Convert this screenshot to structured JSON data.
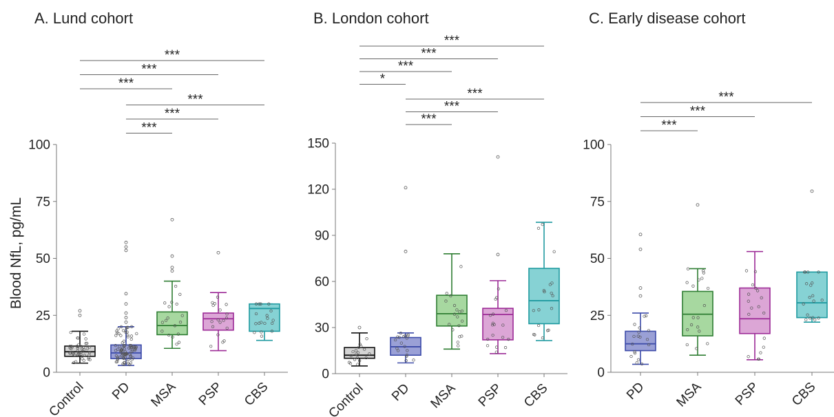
{
  "figure": {
    "ylabel": "Blood NfL, pg/mL",
    "colors": {
      "Control": {
        "fill": "#d4d4d4",
        "stroke": "#111111"
      },
      "PD": {
        "fill": "#9aa0d6",
        "stroke": "#3b4aa8"
      },
      "MSA": {
        "fill": "#a7d8a0",
        "stroke": "#2e7d32"
      },
      "PSP": {
        "fill": "#dca6d6",
        "stroke": "#9c2a96"
      },
      "CBS": {
        "fill": "#86d2d4",
        "stroke": "#1f9aa0"
      }
    }
  },
  "chart_data": [
    {
      "type": "box",
      "title": "A. Lund cohort",
      "ylabel": "Blood NfL, pg/mL",
      "ylim": [
        0,
        100
      ],
      "yticks": [
        0,
        25,
        50,
        75,
        100
      ],
      "categories": [
        "Control",
        "PD",
        "MSA",
        "PSP",
        "CBS"
      ],
      "boxes": [
        {
          "name": "Control",
          "min": 4,
          "q1": 7,
          "median": 9,
          "q3": 11.5,
          "max": 18,
          "outliers": [
            25,
            27
          ]
        },
        {
          "name": "PD",
          "min": 3,
          "q1": 6,
          "median": 8.5,
          "q3": 12,
          "max": 20,
          "outliers": [
            22,
            24,
            26,
            30,
            34.5,
            53.5,
            55,
            57
          ]
        },
        {
          "name": "MSA",
          "min": 10.5,
          "q1": 16.5,
          "median": 20.5,
          "q3": 26.5,
          "max": 40,
          "outliers": [
            44.5,
            46,
            51,
            67
          ]
        },
        {
          "name": "PSP",
          "min": 9.5,
          "q1": 18.5,
          "median": 23.5,
          "q3": 26,
          "max": 35,
          "outliers": [
            52.5
          ]
        },
        {
          "name": "CBS",
          "min": 14,
          "q1": 18,
          "median": 28,
          "q3": 30,
          "max": 30,
          "outliers": []
        }
      ],
      "significance": [
        {
          "from": "Control",
          "to": "CBS",
          "label": "***"
        },
        {
          "from": "Control",
          "to": "PSP",
          "label": "***"
        },
        {
          "from": "Control",
          "to": "MSA",
          "label": "***"
        },
        {
          "from": "PD",
          "to": "CBS",
          "label": "***"
        },
        {
          "from": "PD",
          "to": "PSP",
          "label": "***"
        },
        {
          "from": "PD",
          "to": "MSA",
          "label": "***"
        }
      ]
    },
    {
      "type": "box",
      "title": "B. London cohort",
      "ylim": [
        0,
        150
      ],
      "yticks": [
        0,
        30,
        60,
        90,
        120,
        150
      ],
      "categories": [
        "Control",
        "PD",
        "MSA",
        "PSP",
        "CBS"
      ],
      "boxes": [
        {
          "name": "Control",
          "min": 5,
          "q1": 10,
          "median": 12,
          "q3": 17,
          "max": 26.5,
          "outliers": [
            30
          ]
        },
        {
          "name": "PD",
          "min": 7,
          "q1": 12,
          "median": 17.5,
          "q3": 23.5,
          "max": 26.5,
          "outliers": [
            79.5,
            121
          ]
        },
        {
          "name": "MSA",
          "min": 16,
          "q1": 31,
          "median": 39,
          "q3": 51,
          "max": 78,
          "outliers": []
        },
        {
          "name": "PSP",
          "min": 13,
          "q1": 22,
          "median": 38.5,
          "q3": 42.5,
          "max": 60.5,
          "outliers": [
            77.5,
            141
          ]
        },
        {
          "name": "CBS",
          "min": 21.5,
          "q1": 32.5,
          "median": 47.5,
          "q3": 68.5,
          "max": 98.5,
          "outliers": []
        }
      ],
      "significance": [
        {
          "from": "Control",
          "to": "CBS",
          "label": "***"
        },
        {
          "from": "Control",
          "to": "PSP",
          "label": "***"
        },
        {
          "from": "Control",
          "to": "MSA",
          "label": "***"
        },
        {
          "from": "Control",
          "to": "PD",
          "label": "*"
        },
        {
          "from": "PD",
          "to": "CBS",
          "label": "***"
        },
        {
          "from": "PD",
          "to": "PSP",
          "label": "***"
        },
        {
          "from": "PD",
          "to": "MSA",
          "label": "***"
        }
      ]
    },
    {
      "type": "box",
      "title": "C. Early disease cohort",
      "ylim": [
        0,
        100
      ],
      "yticks": [
        0,
        25,
        50,
        75,
        100
      ],
      "categories": [
        "PD",
        "MSA",
        "PSP",
        "CBS"
      ],
      "boxes": [
        {
          "name": "PD",
          "min": 3.5,
          "q1": 9.5,
          "median": 12.5,
          "q3": 18,
          "max": 26,
          "outliers": [
            33.5,
            37,
            54,
            60.5
          ]
        },
        {
          "name": "MSA",
          "min": 7.5,
          "q1": 16,
          "median": 25.5,
          "q3": 35.5,
          "max": 45.5,
          "outliers": [
            73.5
          ]
        },
        {
          "name": "PSP",
          "min": 5.5,
          "q1": 17,
          "median": 23.5,
          "q3": 37,
          "max": 53,
          "outliers": []
        },
        {
          "name": "CBS",
          "min": 22,
          "q1": 24,
          "median": 30.5,
          "q3": 44,
          "max": 44,
          "outliers": [
            79.5
          ]
        }
      ],
      "significance": [
        {
          "from": "PD",
          "to": "CBS",
          "label": "***"
        },
        {
          "from": "PD",
          "to": "PSP",
          "label": "***"
        },
        {
          "from": "PD",
          "to": "MSA",
          "label": "***"
        }
      ]
    }
  ]
}
